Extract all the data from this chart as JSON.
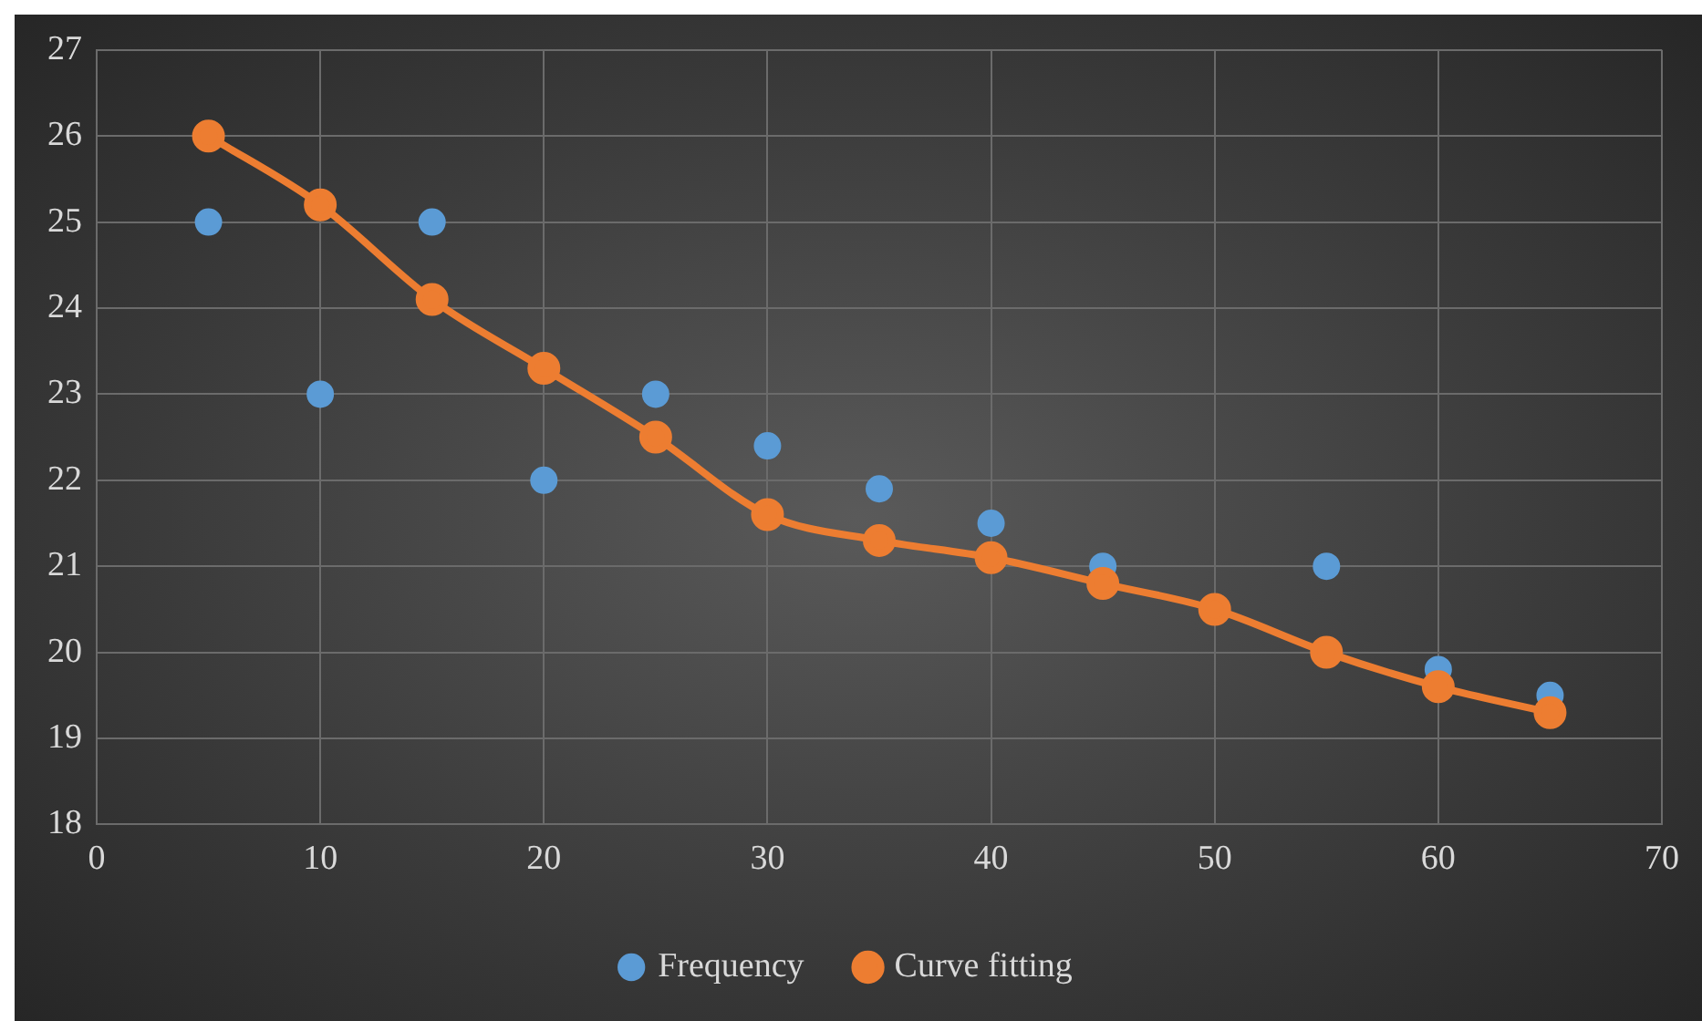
{
  "chart_data": {
    "type": "scatter",
    "x": [
      5,
      10,
      15,
      20,
      25,
      30,
      35,
      40,
      45,
      50,
      55,
      60,
      65
    ],
    "series": [
      {
        "name": "Frequency",
        "color": "#5b9bd5",
        "values": [
          25,
          23,
          25,
          22,
          23,
          22.4,
          21.9,
          21.5,
          21.0,
          null,
          21.0,
          19.8,
          19.5
        ]
      },
      {
        "name": "Curve fitting",
        "type": "line",
        "color": "#ed7d31",
        "values": [
          26,
          25.2,
          24.1,
          23.3,
          22.5,
          21.6,
          21.3,
          21.1,
          20.8,
          20.5,
          20.0,
          19.6,
          19.3
        ]
      }
    ],
    "xlim": [
      0,
      70
    ],
    "xticks": [
      0,
      10,
      20,
      30,
      40,
      50,
      60,
      70
    ],
    "ylim": [
      18,
      27
    ],
    "yticks": [
      18,
      19,
      20,
      21,
      22,
      23,
      24,
      25,
      26,
      27
    ],
    "grid": true,
    "legend": "bottom",
    "marker": "circle",
    "line_style": "solid"
  }
}
